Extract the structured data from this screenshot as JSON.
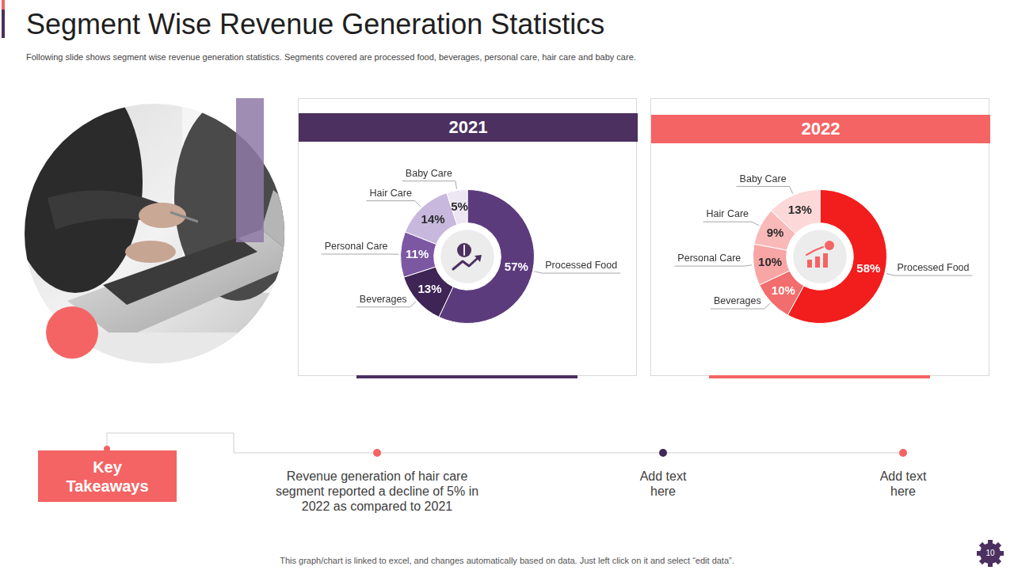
{
  "header": {
    "title": "Segment Wise Revenue Generation Statistics",
    "subtitle": "Following slide shows segment wise revenue generation statistics. Segments covered are processed food, beverages, personal care, hair care and baby care."
  },
  "chart_data": [
    {
      "type": "doughnut",
      "title": "2021",
      "categories": [
        "Processed Food",
        "Beverages",
        "Personal Care",
        "Hair Care",
        "Baby Care"
      ],
      "values": [
        57,
        13,
        11,
        14,
        5
      ],
      "value_labels": [
        "57%",
        "13%",
        "11%",
        "14%",
        "5%"
      ],
      "colors": [
        "#5c3b7d",
        "#3f2456",
        "#7c58a3",
        "#c8b8dd",
        "#ede6f3"
      ],
      "data_labels": true
    },
    {
      "type": "doughnut",
      "title": "2022",
      "categories": [
        "Processed Food",
        "Beverages",
        "Personal Care",
        "Hair Care",
        "Baby Care"
      ],
      "values": [
        58,
        10,
        10,
        9,
        13
      ],
      "value_labels": [
        "58%",
        "10%",
        "10%",
        "9%",
        "13%"
      ],
      "colors": [
        "#f21d1d",
        "#f26d6d",
        "#f8a5a5",
        "#f9b9b9",
        "#fdd8d8"
      ],
      "data_labels": true
    }
  ],
  "key_takeaways": {
    "heading": "Key Takeaways",
    "points": [
      "Revenue generation of hair care segment reported a decline of 5% in 2022 as compared to 2021",
      "Add text here",
      "Add text here"
    ]
  },
  "footer": "This graph/chart is linked to excel, and changes automatically based on data. Just left click on it and select “edit data”.",
  "page_number": "10"
}
